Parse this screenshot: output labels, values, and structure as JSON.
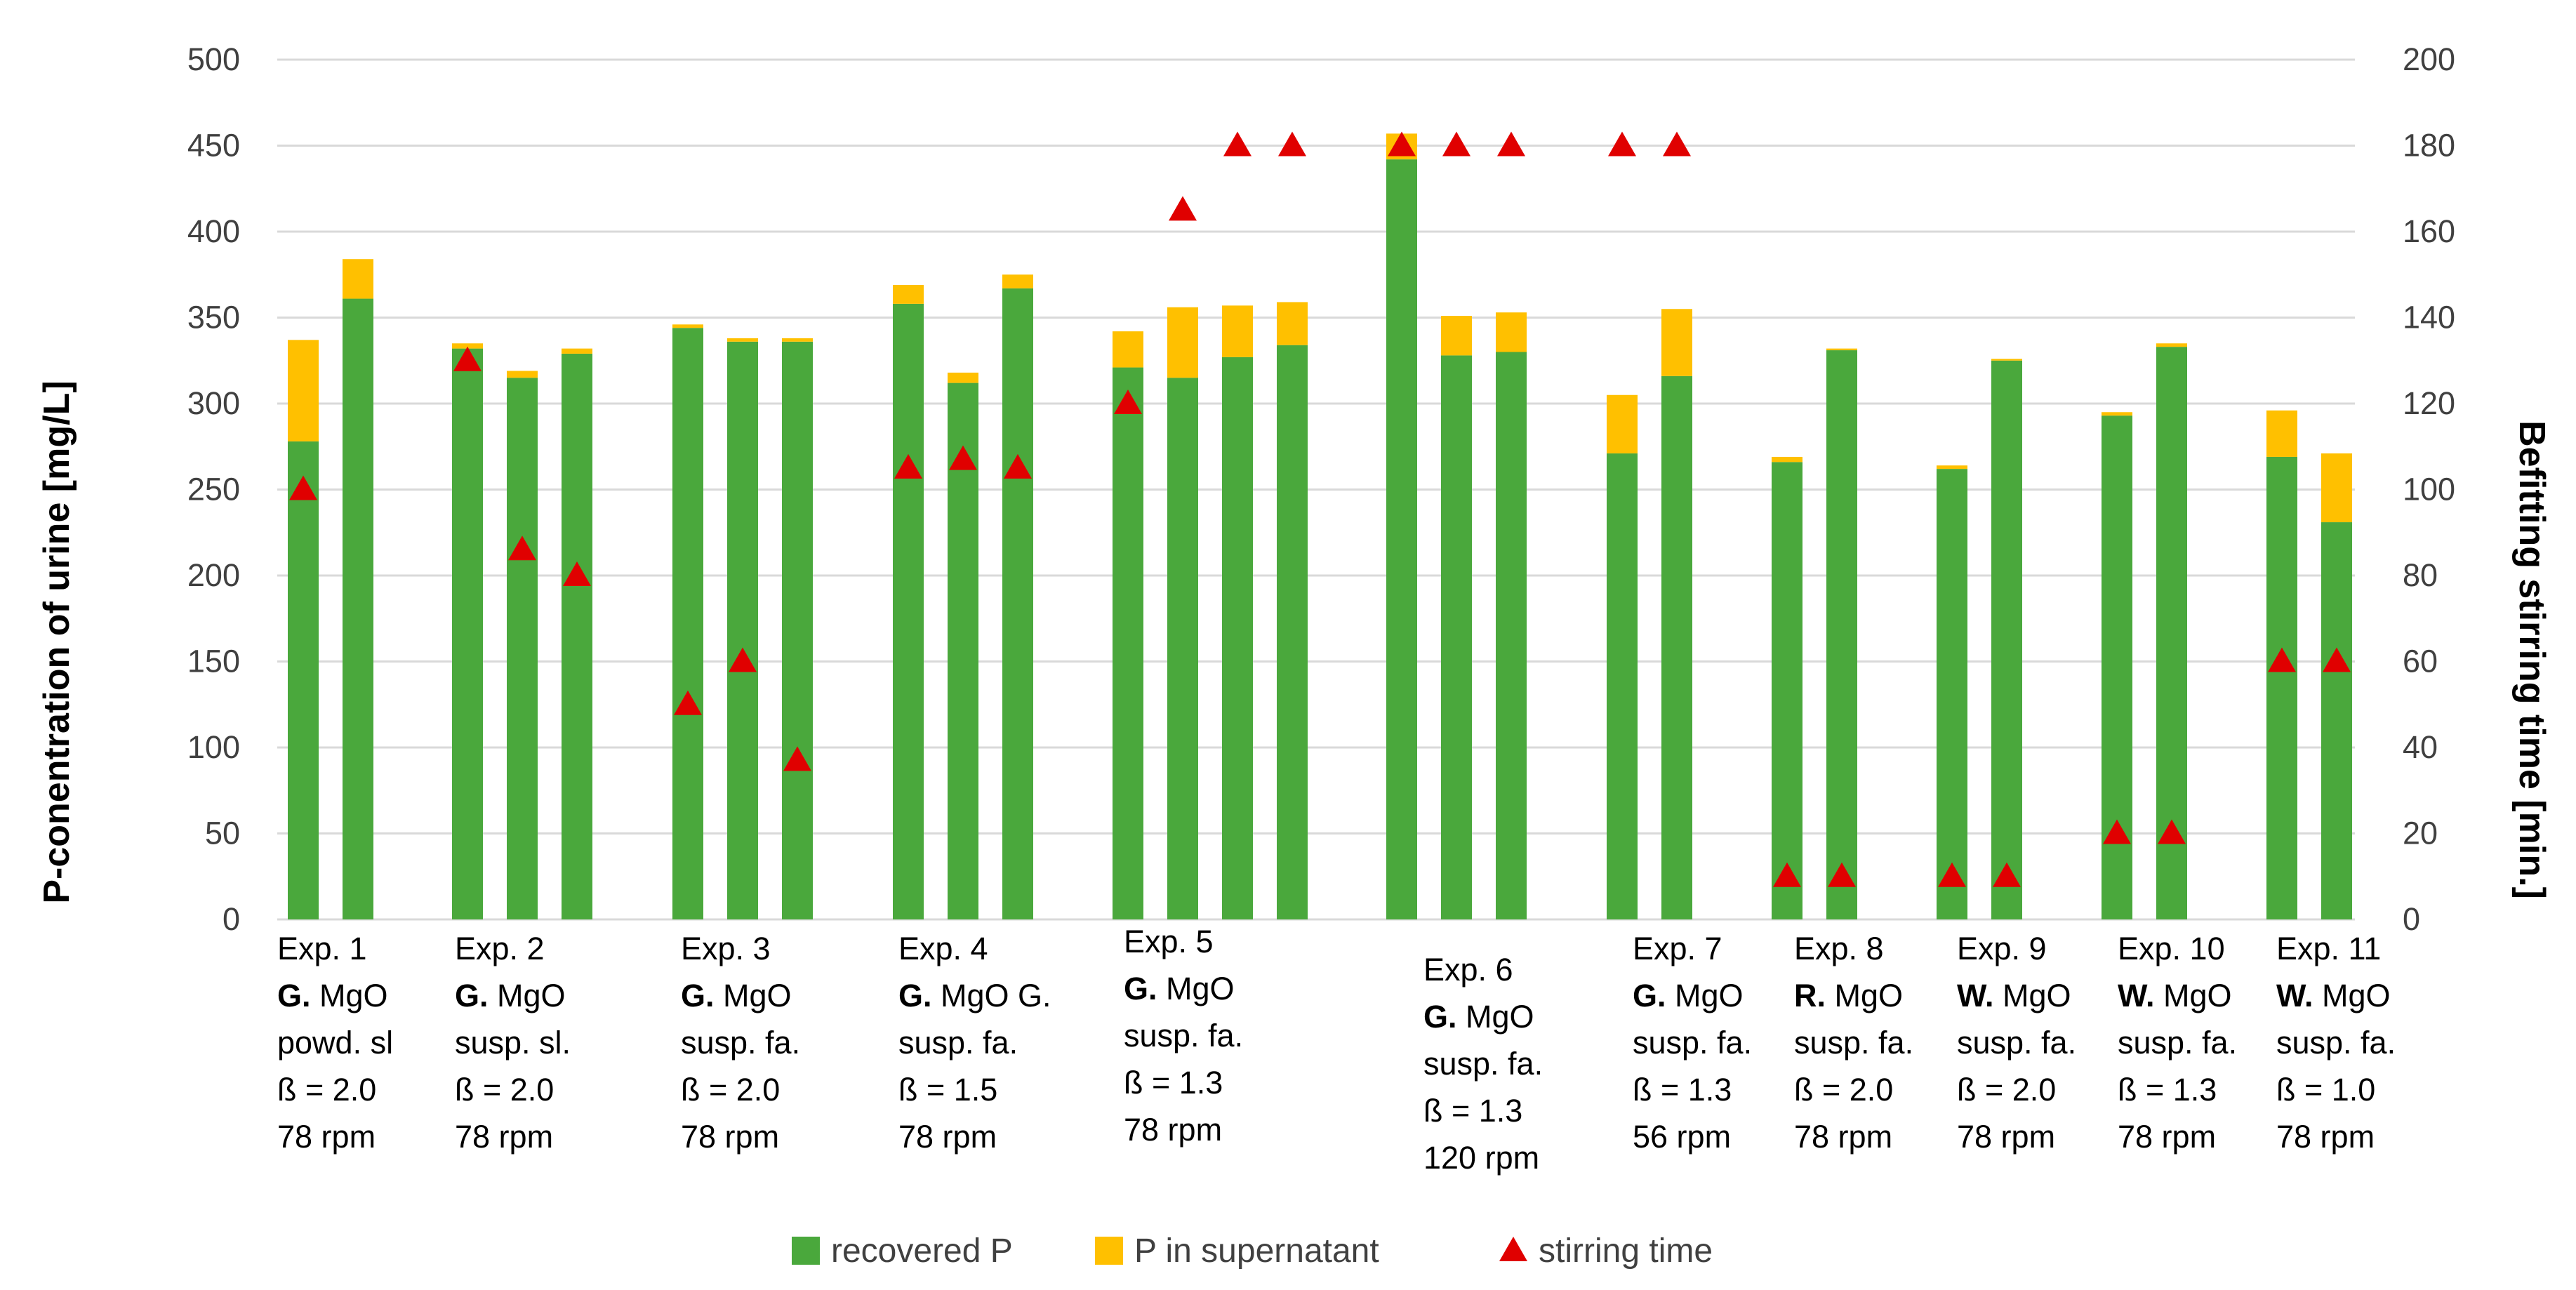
{
  "chart_data": {
    "type": "bar",
    "stacked": true,
    "title": "",
    "ylabel": "P-conentration of urine [mg/L]",
    "y2label": "Befitting stirring time [min.]",
    "ylim": [
      0,
      500
    ],
    "y2lim": [
      0,
      200
    ],
    "yticks": [
      "0",
      "50",
      "100",
      "150",
      "200",
      "250",
      "300",
      "350",
      "400",
      "450",
      "500"
    ],
    "y2ticks": [
      "0",
      "20",
      "40",
      "60",
      "80",
      "100",
      "120",
      "140",
      "160",
      "180",
      "200"
    ],
    "grid": true,
    "legend_position": "bottom",
    "colors": {
      "recovered": "#4aa83c",
      "supernatant": "#ffc000",
      "stirring": "#e00000",
      "grid": "#d9d9d9"
    },
    "legend": [
      {
        "key": "recovered",
        "label": "recovered P"
      },
      {
        "key": "supernatant",
        "label": "P in supernatant"
      },
      {
        "key": "stirring",
        "label": "stirring time"
      }
    ],
    "experiments": [
      {
        "name": "Exp. 1",
        "lines": [
          [
            {
              "b": "G."
            },
            {
              "t": " MgO"
            }
          ],
          [
            {
              "t": "powd. sl"
            }
          ],
          [
            {
              "t": "ß = 2.0"
            }
          ],
          [
            {
              "t": "78 rpm"
            }
          ]
        ],
        "bars": [
          {
            "recovered": 278,
            "supernatant": 59,
            "stirring": 100
          },
          {
            "recovered": 361,
            "supernatant": 23,
            "stirring": null
          }
        ]
      },
      {
        "name": "Exp. 2",
        "lines": [
          [
            {
              "b": "G."
            },
            {
              "t": " MgO"
            }
          ],
          [
            {
              "t": "susp. sl."
            }
          ],
          [
            {
              "t": "ß = 2.0"
            }
          ],
          [
            {
              "t": "78 rpm"
            }
          ]
        ],
        "bars": [
          {
            "recovered": 332,
            "supernatant": 3,
            "stirring": 130
          },
          {
            "recovered": 315,
            "supernatant": 4,
            "stirring": 86
          },
          {
            "recovered": 329,
            "supernatant": 3,
            "stirring": 80
          }
        ]
      },
      {
        "name": "Exp. 3",
        "lines": [
          [
            {
              "b": "G."
            },
            {
              "t": " MgO"
            }
          ],
          [
            {
              "t": "susp. fa."
            }
          ],
          [
            {
              "t": "ß = 2.0"
            }
          ],
          [
            {
              "t": "78 rpm"
            }
          ]
        ],
        "bars": [
          {
            "recovered": 344,
            "supernatant": 2,
            "stirring": 50
          },
          {
            "recovered": 336,
            "supernatant": 2,
            "stirring": 60
          },
          {
            "recovered": 336,
            "supernatant": 2,
            "stirring": 37
          }
        ]
      },
      {
        "name": "Exp. 4",
        "lines": [
          [
            {
              "b": "G."
            },
            {
              "t": " MgO G."
            }
          ],
          [
            {
              "t": "susp. fa."
            }
          ],
          [
            {
              "t": "ß = 1.5"
            }
          ],
          [
            {
              "t": "78 rpm"
            }
          ]
        ],
        "bars": [
          {
            "recovered": 358,
            "supernatant": 11,
            "stirring": 105
          },
          {
            "recovered": 312,
            "supernatant": 6,
            "stirring": 107
          },
          {
            "recovered": 367,
            "supernatant": 8,
            "stirring": 105
          }
        ]
      },
      {
        "name": "Exp. 5",
        "lines": [
          [
            {
              "b": "G."
            },
            {
              "t": " MgO"
            }
          ],
          [
            {
              "t": "susp. fa."
            }
          ],
          [
            {
              "t": "ß = 1.3"
            }
          ],
          [
            {
              "t": "78 rpm"
            }
          ]
        ],
        "bars": [
          {
            "recovered": 321,
            "supernatant": 21,
            "stirring": 120
          },
          {
            "recovered": 315,
            "supernatant": 41,
            "stirring": 165
          },
          {
            "recovered": 327,
            "supernatant": 30,
            "stirring": 180
          },
          {
            "recovered": 334,
            "supernatant": 25,
            "stirring": 180
          }
        ]
      },
      {
        "name": "Exp. 6",
        "lines": [
          [
            {
              "b": "G."
            },
            {
              "t": " MgO"
            }
          ],
          [
            {
              "t": "susp. fa."
            }
          ],
          [
            {
              "t": "ß = 1.3"
            }
          ],
          [
            {
              "t": "120 rpm"
            }
          ]
        ],
        "bars": [
          {
            "recovered": 442,
            "supernatant": 15,
            "stirring": 180
          },
          {
            "recovered": 328,
            "supernatant": 23,
            "stirring": 180
          },
          {
            "recovered": 330,
            "supernatant": 23,
            "stirring": 180
          }
        ]
      },
      {
        "name": "Exp. 7",
        "lines": [
          [
            {
              "b": "G."
            },
            {
              "t": " MgO"
            }
          ],
          [
            {
              "t": "susp. fa."
            }
          ],
          [
            {
              "t": "ß = 1.3"
            }
          ],
          [
            {
              "t": "56 rpm"
            }
          ]
        ],
        "bars": [
          {
            "recovered": 271,
            "supernatant": 34,
            "stirring": 180
          },
          {
            "recovered": 316,
            "supernatant": 39,
            "stirring": 180
          }
        ]
      },
      {
        "name": "Exp. 8",
        "lines": [
          [
            {
              "b": "R."
            },
            {
              "t": " MgO"
            }
          ],
          [
            {
              "t": "susp. fa."
            }
          ],
          [
            {
              "t": "ß = 2.0"
            }
          ],
          [
            {
              "t": "78 rpm"
            }
          ]
        ],
        "bars": [
          {
            "recovered": 266,
            "supernatant": 3,
            "stirring": 10
          },
          {
            "recovered": 331,
            "supernatant": 1,
            "stirring": 10
          }
        ]
      },
      {
        "name": "Exp. 9",
        "lines": [
          [
            {
              "b": "W."
            },
            {
              "t": " MgO"
            }
          ],
          [
            {
              "t": "susp. fa."
            }
          ],
          [
            {
              "t": "ß = 2.0"
            }
          ],
          [
            {
              "t": "78 rpm"
            }
          ]
        ],
        "bars": [
          {
            "recovered": 262,
            "supernatant": 2,
            "stirring": 10
          },
          {
            "recovered": 325,
            "supernatant": 1,
            "stirring": 10
          }
        ]
      },
      {
        "name": "Exp. 10",
        "lines": [
          [
            {
              "b": "W."
            },
            {
              "t": " MgO"
            }
          ],
          [
            {
              "t": "susp. fa."
            }
          ],
          [
            {
              "t": "ß = 1.3"
            }
          ],
          [
            {
              "t": "78 rpm"
            }
          ]
        ],
        "bars": [
          {
            "recovered": 293,
            "supernatant": 2,
            "stirring": 20
          },
          {
            "recovered": 333,
            "supernatant": 2,
            "stirring": 20
          }
        ]
      },
      {
        "name": "Exp. 11",
        "lines": [
          [
            {
              "b": "W."
            },
            {
              "t": " MgO"
            }
          ],
          [
            {
              "t": "susp. fa."
            }
          ],
          [
            {
              "t": "ß = 1.0"
            }
          ],
          [
            {
              "t": "78 rpm"
            }
          ]
        ],
        "bars": [
          {
            "recovered": 269,
            "supernatant": 27,
            "stirring": 60
          },
          {
            "recovered": 231,
            "supernatant": 40,
            "stirring": 60
          }
        ]
      }
    ]
  }
}
